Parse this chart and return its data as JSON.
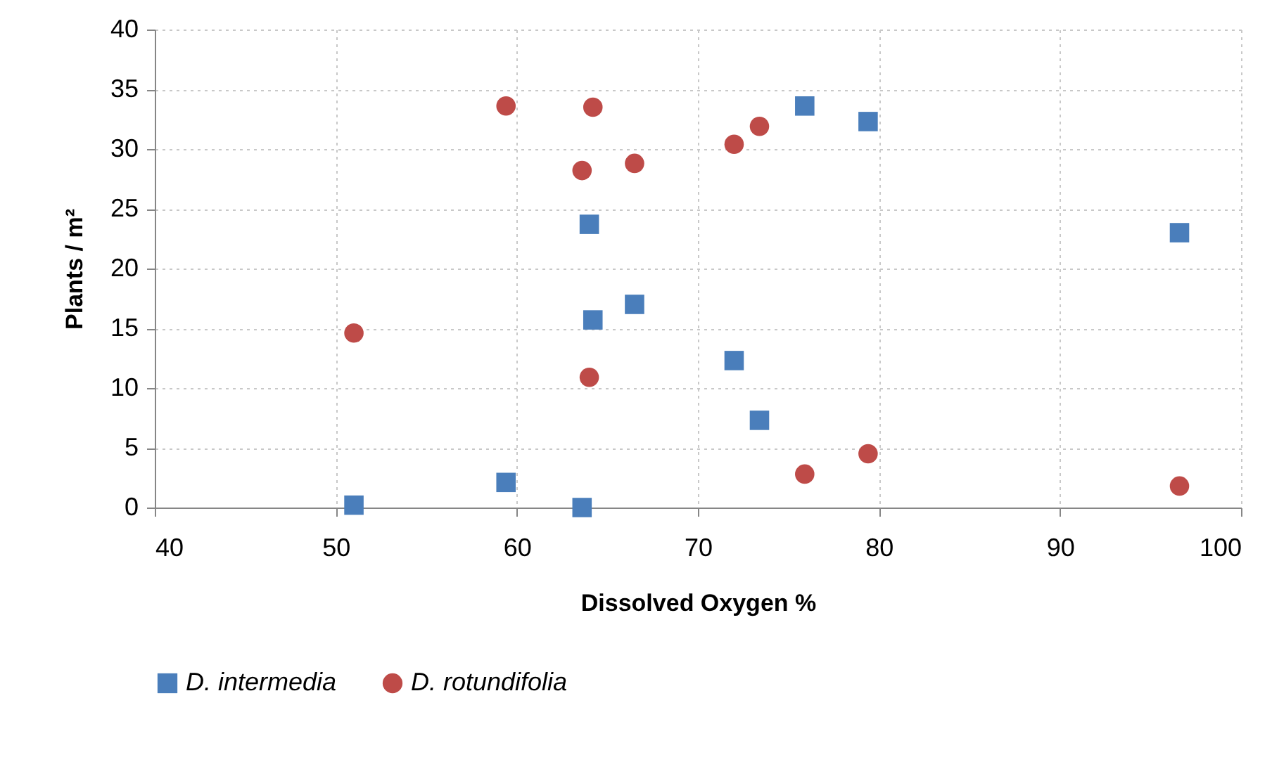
{
  "chart_data": {
    "type": "scatter",
    "xlabel": "Dissolved Oxygen %",
    "ylabel": "Plants / m²",
    "xlim": [
      40,
      100
    ],
    "xticks": [
      40,
      50,
      60,
      70,
      80,
      90,
      100
    ],
    "ylim": [
      0,
      40
    ],
    "yticks": [
      0,
      5,
      10,
      15,
      20,
      25,
      30,
      35,
      40
    ],
    "grid": true,
    "legend": "bottom",
    "series": [
      {
        "name": "D. intermedia",
        "color": "#4a7ebb",
        "marker": "square",
        "x": [
          51.0,
          59.4,
          63.6,
          64.0,
          64.2,
          66.5,
          72.0,
          73.4,
          75.9,
          79.4,
          96.6
        ],
        "values": [
          0.2,
          2.1,
          0,
          23.7,
          15.7,
          17.0,
          12.3,
          7.3,
          33.6,
          32.3,
          23.0
        ]
      },
      {
        "name": "D. rotundifolia",
        "color": "#be4b48",
        "marker": "circle",
        "x": [
          51.0,
          59.4,
          63.6,
          64.0,
          64.2,
          66.5,
          72.0,
          73.4,
          75.9,
          79.4,
          96.6
        ],
        "values": [
          14.6,
          33.6,
          28.2,
          10.9,
          33.5,
          28.8,
          30.4,
          31.9,
          2.8,
          4.5,
          1.8
        ]
      }
    ]
  }
}
